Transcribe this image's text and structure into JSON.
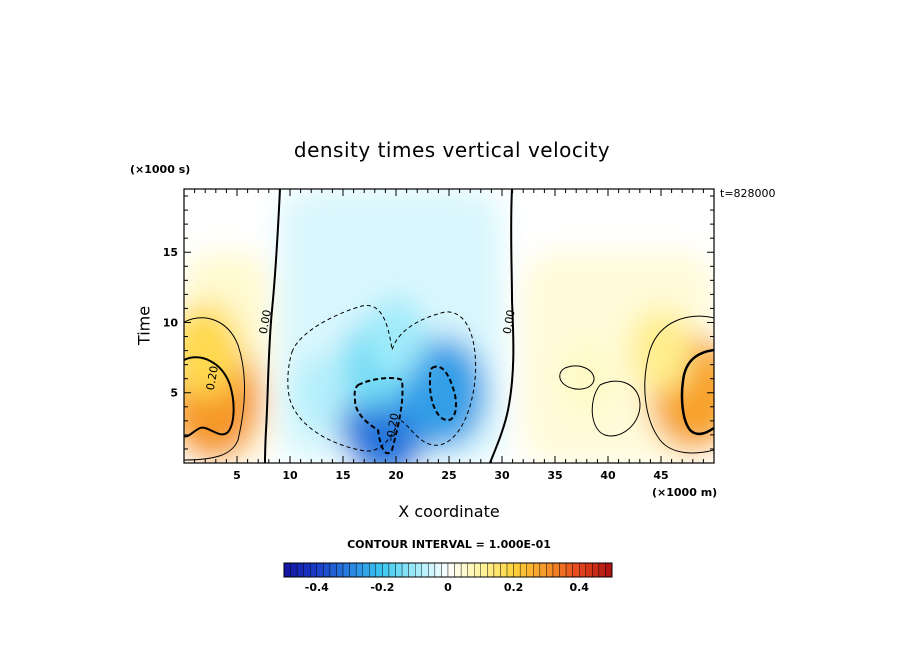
{
  "chart_data": {
    "type": "heatmap",
    "title": "density times vertical velocity",
    "xlabel": "X coordinate",
    "ylabel": "Time",
    "x_units": "(×1000 m)",
    "y_units": "(×1000 s)",
    "timestamp": "t=828000",
    "xlim": [
      0,
      50
    ],
    "ylim": [
      0,
      19.5
    ],
    "x_ticks": [
      5,
      10,
      15,
      20,
      25,
      30,
      35,
      40,
      45
    ],
    "y_ticks": [
      5,
      10,
      15
    ],
    "contour_interval": "CONTOUR INTERVAL = 1.000E-01",
    "contour_labels": [
      {
        "text": "0.00",
        "x": 8,
        "y": 10
      },
      {
        "text": "0.00",
        "x": 31,
        "y": 10
      },
      {
        "text": "0.20",
        "x": 3,
        "y": 6
      },
      {
        "text": "-0.20",
        "x": 20,
        "y": 2.5
      }
    ],
    "blobs": [
      {
        "x": 3,
        "y": 4.5,
        "value": 0.3
      },
      {
        "x": 2,
        "y": 8,
        "value": 0.18
      },
      {
        "x": 48,
        "y": 5,
        "value": 0.28
      },
      {
        "x": 45,
        "y": 8,
        "value": 0.12
      },
      {
        "x": 38,
        "y": 6,
        "value": 0.06
      },
      {
        "x": 19,
        "y": 3.5,
        "value": -0.32
      },
      {
        "x": 24.5,
        "y": 5,
        "value": -0.26
      },
      {
        "x": 18,
        "y": 7,
        "value": -0.15
      },
      {
        "x": 20,
        "y": 9,
        "value": -0.1
      },
      {
        "x": 13,
        "y": 5,
        "value": -0.08
      }
    ],
    "colorbar": {
      "min": -0.5,
      "max": 0.5,
      "tick_values": [
        -0.4,
        -0.2,
        0,
        0.2,
        0.4
      ],
      "tick_labels": [
        "-0.4",
        "-0.2",
        "0",
        "0.2",
        "0.4"
      ]
    }
  }
}
